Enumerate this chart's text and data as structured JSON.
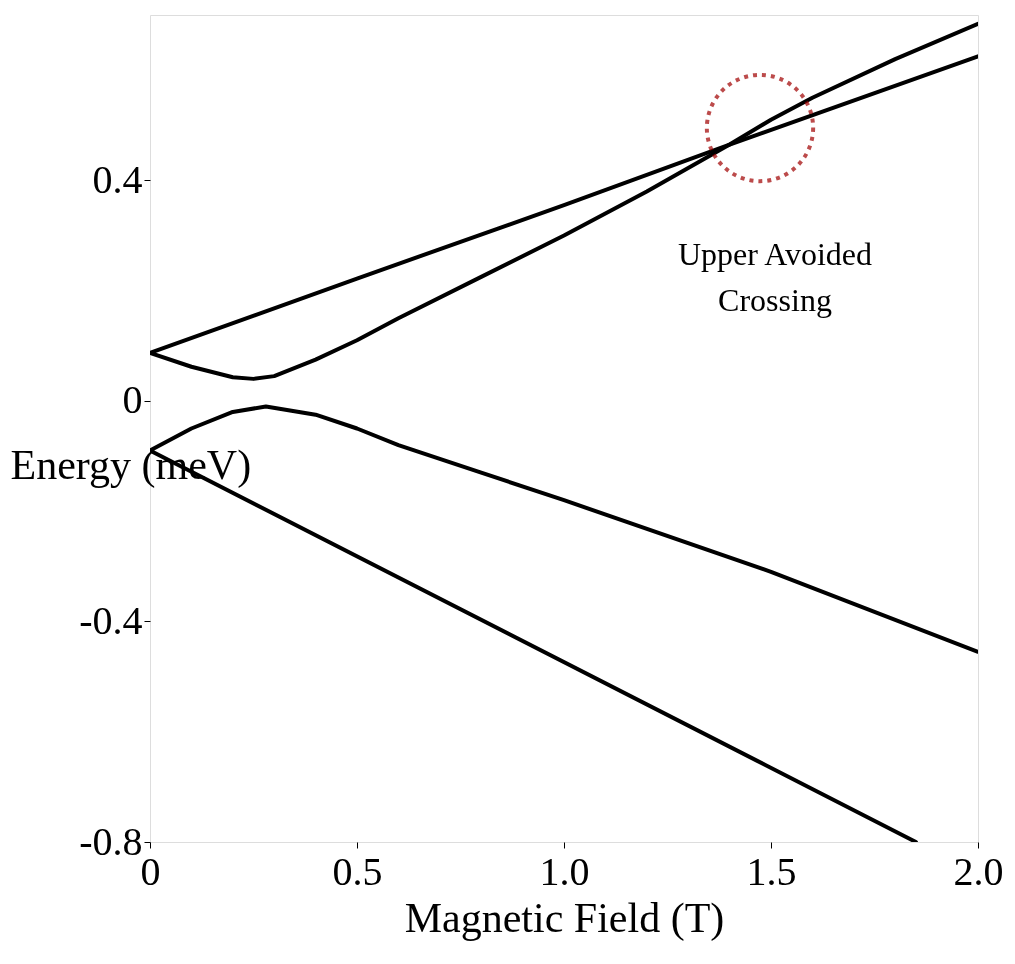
{
  "chart_data": {
    "type": "line",
    "xlabel": "Magnetic Field (T)",
    "ylabel": "Energy (meV)",
    "xlim": [
      0,
      2
    ],
    "ylim": [
      -0.8,
      0.7
    ],
    "xticks": [
      0,
      0.5,
      {
        "value": 1,
        "label": "1.0"
      },
      1.5,
      {
        "value": 2,
        "label": "2.0"
      }
    ],
    "yticks": [
      -0.8,
      -0.4,
      0,
      0.4
    ],
    "grid": false,
    "marker": "none",
    "line_style": "solid",
    "annotations": [
      "Upper Avoided Crossing"
    ],
    "series": [
      {
        "color": "#000000",
        "x": [
          0,
          0.5,
          1.0,
          1.4,
          2.0
        ],
        "values": [
          0.087,
          0.222,
          0.355,
          0.465,
          0.625
        ]
      },
      {
        "color": "#000000",
        "x": [
          0,
          0.1,
          0.2,
          0.25,
          0.3,
          0.4,
          0.5,
          0.6,
          0.8,
          1.0,
          1.2,
          1.4,
          1.5,
          1.6,
          1.8,
          2.0
        ],
        "values": [
          0.087,
          0.062,
          0.043,
          0.04,
          0.045,
          0.075,
          0.11,
          0.15,
          0.225,
          0.3,
          0.38,
          0.465,
          0.51,
          0.55,
          0.62,
          0.684
        ]
      },
      {
        "color": "#000000",
        "x": [
          0,
          0.1,
          0.2,
          0.28,
          0.4,
          0.5,
          0.6,
          0.8,
          1.0,
          1.5,
          2.0
        ],
        "values": [
          -0.09,
          -0.05,
          -0.02,
          -0.01,
          -0.025,
          -0.05,
          -0.08,
          -0.13,
          -0.18,
          -0.31,
          -0.455
        ]
      },
      {
        "color": "#000000",
        "x": [
          0,
          1.85
        ],
        "values": [
          -0.09,
          -0.8
        ]
      }
    ]
  }
}
